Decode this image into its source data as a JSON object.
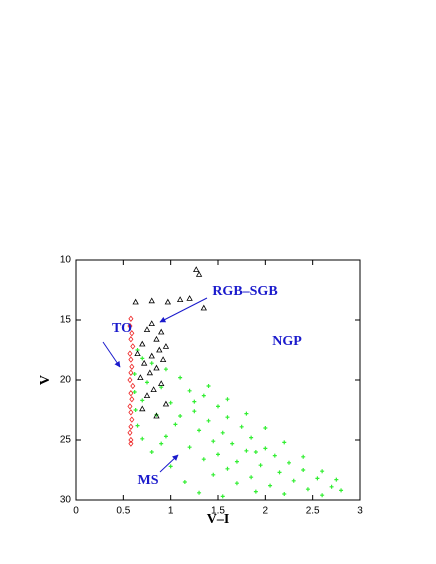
{
  "chart_data": {
    "type": "scatter",
    "xlabel": "V–I",
    "ylabel": "V",
    "xlim": [
      0,
      3
    ],
    "ylim": [
      30,
      10
    ],
    "xticks": [
      0,
      0.5,
      1,
      1.5,
      2,
      2.5,
      3
    ],
    "yticks": [
      10,
      15,
      20,
      25,
      30
    ],
    "annotations": [
      "TO",
      "RGB–SGB",
      "NGP",
      "MS"
    ],
    "series": [
      {
        "color": "#33ee33",
        "marker": "plus",
        "x": [
          0.65,
          0.7,
          0.8,
          0.95,
          1.1,
          0.75,
          0.9,
          1.2,
          1.35,
          0.7,
          1.0,
          1.5,
          1.25,
          0.85,
          1.6,
          1.4,
          1.05,
          1.75,
          1.3,
          1.55,
          0.95,
          1.85,
          1.45,
          1.65,
          1.2,
          2.0,
          1.8,
          1.5,
          2.1,
          1.35,
          1.7,
          2.25,
          1.95,
          1.6,
          2.4,
          2.15,
          1.45,
          1.85,
          2.55,
          2.3,
          1.7,
          2.05,
          2.7,
          2.45,
          1.9,
          2.2,
          2.6,
          2.8,
          1.55,
          1.0,
          1.15,
          1.3,
          0.62,
          0.62,
          0.63,
          0.65,
          0.7,
          0.8,
          0.9,
          1.1,
          1.25,
          1.4,
          1.6,
          1.8,
          2.0,
          2.2,
          2.4,
          2.6,
          2.75,
          1.9
        ],
        "values": [
          17.5,
          18.2,
          18.6,
          19.1,
          19.8,
          20.2,
          20.6,
          20.9,
          21.3,
          21.7,
          21.9,
          22.2,
          22.6,
          22.9,
          23.1,
          23.4,
          23.7,
          23.9,
          24.2,
          24.4,
          24.7,
          24.8,
          25.1,
          25.3,
          25.6,
          25.7,
          25.9,
          26.2,
          26.3,
          26.6,
          26.8,
          26.9,
          27.1,
          27.4,
          27.5,
          27.7,
          27.9,
          28.1,
          28.2,
          28.4,
          28.6,
          28.8,
          28.9,
          29.1,
          29.3,
          29.5,
          29.6,
          29.2,
          29.7,
          27.2,
          28.5,
          29.4,
          19.5,
          21.0,
          22.5,
          23.8,
          24.9,
          26.0,
          25.3,
          23.0,
          21.8,
          20.5,
          21.6,
          22.8,
          24.0,
          25.2,
          26.4,
          27.6,
          28.3,
          26.0
        ]
      },
      {
        "color": "#ee2222",
        "marker": "diamond",
        "x": [
          0.58,
          0.57,
          0.59,
          0.58,
          0.6,
          0.57,
          0.58,
          0.59,
          0.58,
          0.57,
          0.6,
          0.58,
          0.59,
          0.57,
          0.58,
          0.59,
          0.58,
          0.57,
          0.58,
          0.58
        ],
        "values": [
          14.9,
          15.5,
          16.1,
          16.6,
          17.2,
          17.8,
          18.3,
          18.9,
          19.4,
          20.0,
          20.5,
          21.1,
          21.6,
          22.2,
          22.7,
          23.3,
          23.9,
          24.4,
          25.0,
          25.3
        ]
      },
      {
        "color": "#000000",
        "marker": "triangle",
        "x": [
          1.27,
          1.3,
          1.2,
          1.35,
          0.8,
          0.63,
          0.97,
          1.1,
          0.75,
          0.9,
          0.85,
          0.7,
          0.95,
          0.88,
          0.65,
          0.8,
          0.92,
          0.72,
          0.85,
          0.78,
          0.68,
          0.9,
          0.82,
          0.75,
          0.95,
          0.7,
          0.85,
          0.8
        ],
        "values": [
          10.8,
          11.2,
          13.2,
          14.0,
          13.4,
          13.5,
          13.5,
          13.3,
          15.8,
          16.0,
          16.6,
          17.0,
          17.2,
          17.5,
          17.8,
          18.0,
          18.3,
          18.6,
          19.0,
          19.4,
          19.8,
          20.3,
          20.8,
          21.3,
          22.0,
          22.4,
          23.0,
          15.3
        ]
      }
    ]
  }
}
